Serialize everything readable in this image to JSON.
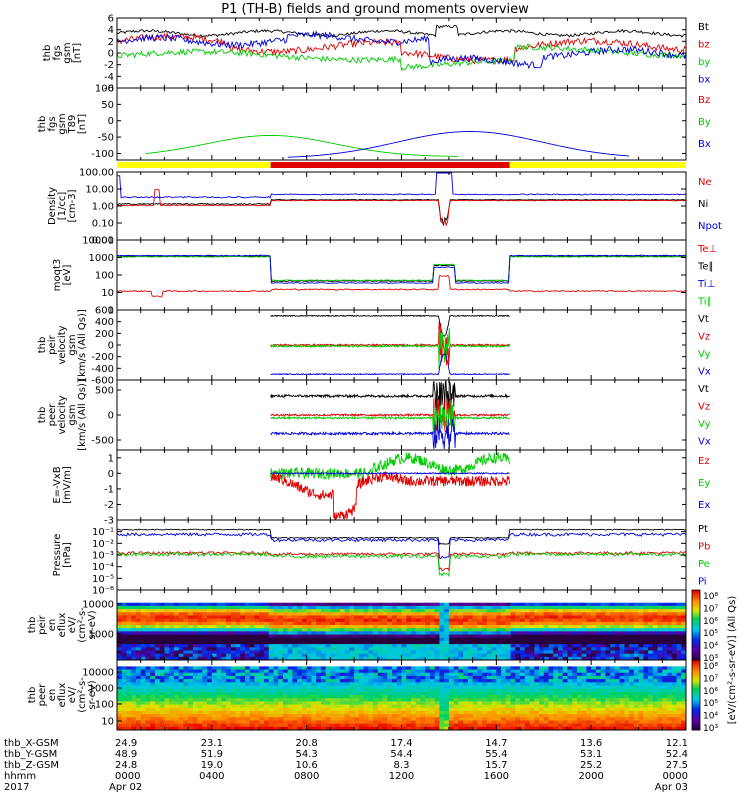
{
  "title": "P1 (TH-B) fields and ground moments overview",
  "colors": {
    "black": "#000000",
    "red": "#e00000",
    "green": "#00cc00",
    "blue": "#0000e0",
    "yellow": "#ffff00"
  },
  "chart_data": [
    {
      "id": "fgs",
      "type": "line",
      "ylabel": [
        "thb",
        "fgs",
        "gsm",
        "[nT]"
      ],
      "ylim": [
        -6,
        6
      ],
      "yticks": [
        "6",
        "4",
        "2",
        "0",
        "-2",
        "-4",
        "-6"
      ],
      "yticks_values": [
        6,
        4,
        2,
        0,
        -2,
        -4,
        -6
      ],
      "legend": [
        "Bt",
        "bz",
        "by",
        "bx"
      ],
      "legend_colors": [
        "#000000",
        "#e00000",
        "#00cc00",
        "#0000e0"
      ]
    },
    {
      "id": "fgs_t89",
      "type": "line",
      "ylabel": [
        "thb",
        "fgs",
        "gsm",
        "T89",
        "[nT]"
      ],
      "ylim": [
        -120,
        100
      ],
      "yticks": [
        "100",
        "50",
        "0",
        "-50",
        "-100"
      ],
      "yticks_values": [
        100,
        50,
        0,
        -50,
        -100
      ],
      "legend": [
        "Bz",
        "By",
        "Bx"
      ],
      "legend_colors": [
        "#e00000",
        "#00cc00",
        "#0000e0"
      ]
    },
    {
      "id": "density",
      "type": "line",
      "log": true,
      "ylabel": [
        "Density",
        "[1/cc]",
        "[cm-3]"
      ],
      "ylim": [
        0.01,
        100
      ],
      "yticks": [
        "100.00",
        "10.00",
        "1.00",
        "0.10",
        "0.01"
      ],
      "yticks_values": [
        100,
        10,
        1,
        0.1,
        0.01
      ],
      "legend": [
        "Ne",
        "Ni",
        "Npot"
      ],
      "legend_colors": [
        "#e00000",
        "#000000",
        "#0000e0"
      ]
    },
    {
      "id": "temperature",
      "type": "line",
      "log": true,
      "ylabel": [
        "moqt3",
        "[eV]"
      ],
      "ylim": [
        1,
        10000
      ],
      "yticks": [
        "10000",
        "1000",
        "100",
        "10",
        "1"
      ],
      "yticks_values": [
        10000,
        1000,
        100,
        10,
        1
      ],
      "legend": [
        "Te⊥",
        "Te∥",
        "Ti⊥",
        "Ti∥"
      ],
      "legend_colors": [
        "#e00000",
        "#000000",
        "#0000e0",
        "#00cc00"
      ]
    },
    {
      "id": "ion_velocity",
      "type": "line",
      "ylabel": [
        "thb",
        "peir",
        "velocity",
        "gsm",
        "[km/s (All Qs)]"
      ],
      "ylim": [
        -600,
        600
      ],
      "yticks": [
        "600",
        "400",
        "200",
        "0",
        "-200",
        "-400",
        "-600"
      ],
      "yticks_values": [
        600,
        400,
        200,
        0,
        -200,
        -400,
        -600
      ],
      "legend": [
        "Vt",
        "Vz",
        "Vy",
        "Vx"
      ],
      "legend_colors": [
        "#000000",
        "#e00000",
        "#00cc00",
        "#0000e0"
      ]
    },
    {
      "id": "electron_velocity",
      "type": "line",
      "ylabel": [
        "thb",
        "peer",
        "velocity",
        "gsm",
        "[km/s (All Qs)]"
      ],
      "ylim": [
        -700,
        700
      ],
      "yticks": [
        "500",
        "0",
        "-500"
      ],
      "yticks_values": [
        500,
        0,
        -500
      ],
      "legend": [
        "Vt",
        "Vz",
        "Vy",
        "Vx"
      ],
      "legend_colors": [
        "#000000",
        "#e00000",
        "#00cc00",
        "#0000e0"
      ]
    },
    {
      "id": "efield",
      "type": "line",
      "ylabel": [
        "E=-VxB",
        "[mV/m]"
      ],
      "ylim": [
        -3,
        1.5
      ],
      "yticks": [
        "1",
        "0",
        "-1",
        "-2",
        "-3"
      ],
      "yticks_values": [
        1,
        0,
        -1,
        -2,
        -3
      ],
      "legend": [
        "Ez",
        "Ey",
        "Ex"
      ],
      "legend_colors": [
        "#e00000",
        "#00cc00",
        "#0000e0"
      ]
    },
    {
      "id": "pressure",
      "type": "line",
      "log": true,
      "ylabel": [
        "Pressure",
        "[nPa]"
      ],
      "ylim": [
        1e-06,
        1
      ],
      "yticks": [
        "10⁻¹",
        "10⁻²",
        "10⁻³",
        "10⁻⁴",
        "10⁻⁵",
        "10⁻⁶"
      ],
      "yticks_values": [
        0.1,
        0.01,
        0.001,
        0.0001,
        1e-05,
        1e-06
      ],
      "legend": [
        "Pt",
        "Pb",
        "Pe",
        "Pi"
      ],
      "legend_colors": [
        "#000000",
        "#e00000",
        "#00cc00",
        "#0000e0"
      ]
    },
    {
      "id": "ion_spectrogram",
      "type": "heatmap",
      "ylabel": [
        "thb",
        "peir",
        "en",
        "eflux",
        "eV/",
        "(cm²-s-",
        "sr-eV)"
      ],
      "yticks": [
        "10000",
        "1000"
      ],
      "colorbar_ticks": [
        "10⁸",
        "10⁷",
        "10⁶",
        "10⁵",
        "10⁴",
        "10³"
      ],
      "colorbar_label": "[eV/(cm²-s-sr-eV)] (All Qs)"
    },
    {
      "id": "electron_spectrogram",
      "type": "heatmap",
      "ylabel": [
        "thb",
        "peer",
        "en",
        "eflux",
        "eV/",
        "(cm²-s-",
        "sr-eV)"
      ],
      "yticks": [
        "10000",
        "1000",
        "100",
        "10"
      ],
      "colorbar_ticks": [
        "10⁸",
        "10⁷",
        "10⁶",
        "10⁵",
        "10⁴",
        "10³"
      ],
      "colorbar_label": "[eV/(cm²-s-sr-eV)] (All Qs)"
    }
  ],
  "footer": {
    "labels": [
      "thb_X-GSM",
      "thb_Y-GSM",
      "thb_Z-GSM",
      "hhmm",
      "2017"
    ],
    "columns": [
      {
        "x": "24.9",
        "y": "48.9",
        "z": "24.8",
        "time": "0000",
        "date": "Apr 02"
      },
      {
        "x": "23.1",
        "y": "51.9",
        "z": "19.0",
        "time": "0400",
        "date": ""
      },
      {
        "x": "20.8",
        "y": "54.3",
        "z": "10.6",
        "time": "0800",
        "date": ""
      },
      {
        "x": "17.4",
        "y": "54.4",
        "z": "8.3",
        "time": "1200",
        "date": ""
      },
      {
        "x": "14.7",
        "y": "55.4",
        "z": "15.7",
        "time": "1600",
        "date": ""
      },
      {
        "x": "13.6",
        "y": "53.1",
        "z": "25.2",
        "time": "2000",
        "date": ""
      },
      {
        "x": "12.1",
        "y": "52.4",
        "z": "27.5",
        "time": "0000",
        "date": "Apr 03"
      }
    ]
  }
}
